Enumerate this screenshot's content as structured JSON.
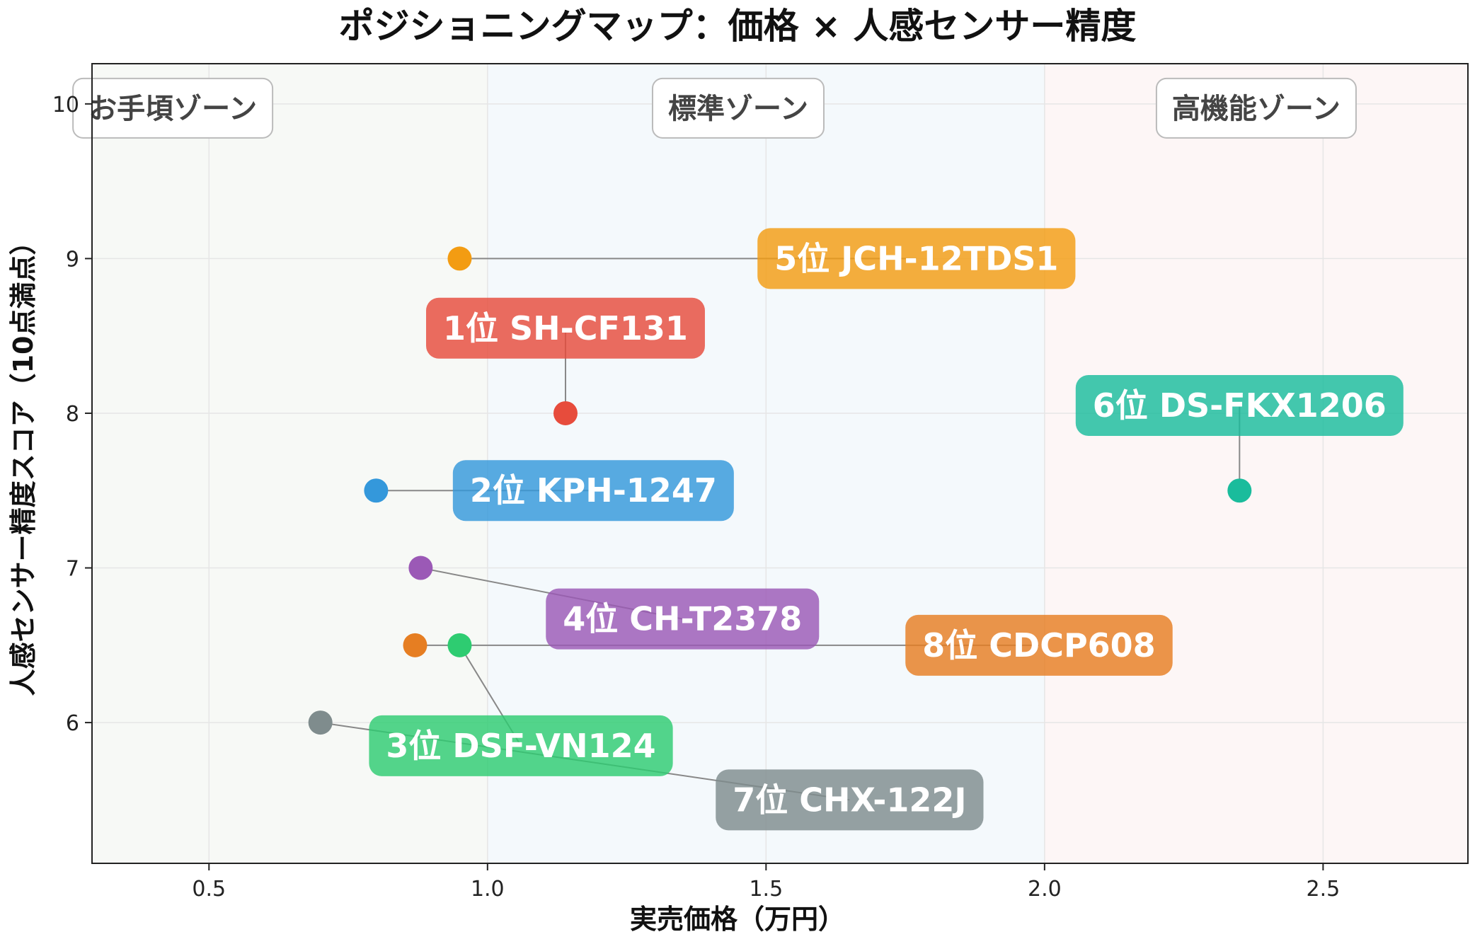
{
  "chart_data": {
    "type": "scatter",
    "title": "ポジショニングマップ：価格 × 人感センサー精度",
    "xlabel": "実売価格（万円）",
    "ylabel": "人感センサー精度スコア（10点満点）",
    "xlim": [
      0.29,
      2.76
    ],
    "ylim": [
      5.09,
      10.26
    ],
    "xticks": [
      0.5,
      1.0,
      1.5,
      2.0,
      2.5
    ],
    "xtick_labels": [
      "0.5",
      "1.0",
      "1.5",
      "2.0",
      "2.5"
    ],
    "yticks": [
      6,
      7,
      8,
      9,
      10
    ],
    "ytick_labels": [
      "6",
      "7",
      "8",
      "9",
      "10"
    ],
    "grid": true,
    "zones": [
      {
        "label": "お手頃ゾーン",
        "x_from": 0.29,
        "x_to": 1.0,
        "label_x": 0.435,
        "color": "#f7f9f6"
      },
      {
        "label": "標準ゾーン",
        "x_from": 1.0,
        "x_to": 2.0,
        "label_x": 1.45,
        "color": "#f4f9fc"
      },
      {
        "label": "高機能ゾーン",
        "x_from": 2.0,
        "x_to": 2.76,
        "label_x": 2.38,
        "color": "#fdf6f6"
      }
    ],
    "points": [
      {
        "label": "1位 SH-CF131",
        "x": 1.14,
        "y": 8.0,
        "color": "#e74c3c",
        "label_x": 1.14,
        "label_y": 8.55
      },
      {
        "label": "2位 KPH-1247",
        "x": 0.8,
        "y": 7.5,
        "color": "#3498db",
        "label_x": 1.19,
        "label_y": 7.5
      },
      {
        "label": "3位 DSF-VN124",
        "x": 0.95,
        "y": 6.5,
        "color": "#2ecc71",
        "label_x": 1.06,
        "label_y": 5.85
      },
      {
        "label": "4位 CH-T2378",
        "x": 0.88,
        "y": 7.0,
        "color": "#9b59b6",
        "label_x": 1.35,
        "label_y": 6.67
      },
      {
        "label": "5位 JCH-12TDS1",
        "x": 0.95,
        "y": 9.0,
        "color": "#f39c12",
        "label_x": 1.77,
        "label_y": 9.0
      },
      {
        "label": "6位 DS-FKX1206",
        "x": 2.35,
        "y": 7.5,
        "color": "#1abc9c",
        "label_x": 2.35,
        "label_y": 8.05
      },
      {
        "label": "7位 CHX-122J",
        "x": 0.7,
        "y": 6.0,
        "color": "#7f8c8d",
        "label_x": 1.65,
        "label_y": 5.5
      },
      {
        "label": "8位 CDCP608",
        "x": 0.87,
        "y": 6.5,
        "color": "#e67e22",
        "label_x": 1.99,
        "label_y": 6.5
      }
    ]
  }
}
